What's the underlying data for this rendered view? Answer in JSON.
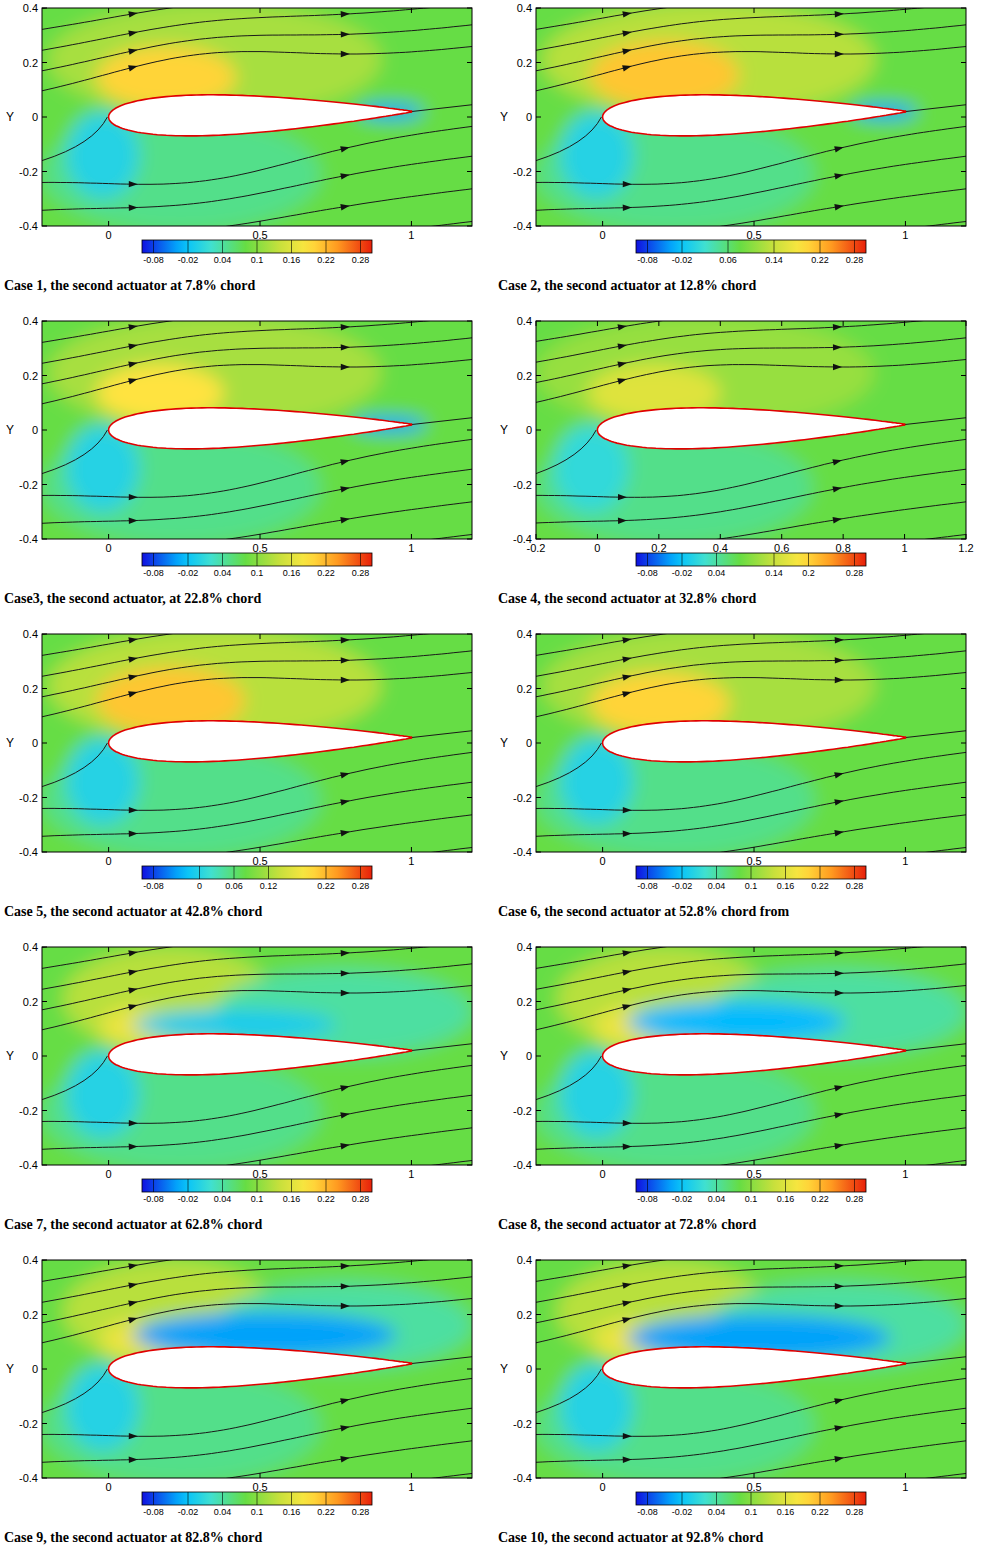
{
  "chart_data": [
    {
      "type": "contour",
      "title": "Case 1, the second actuator at 7.8% chord",
      "ylabel": "Y",
      "xlim": [
        -0.22,
        1.2
      ],
      "xticks": [
        0,
        0.5,
        1
      ],
      "ylim": [
        -0.4,
        0.4
      ],
      "yticks": [
        -0.4,
        -0.2,
        0,
        0.2,
        0.4
      ],
      "colorbar": {
        "range": [
          -0.1,
          0.3
        ],
        "ticks": [
          -0.08,
          -0.02,
          0.04,
          0.1,
          0.16,
          0.22,
          0.28
        ]
      },
      "field": [
        {
          "x": [
            -0.9,
            1.9
          ],
          "y": [
            -0.7,
            0.7
          ],
          "value": 0.08
        },
        {
          "x": [
            -0.2,
            0.9
          ],
          "y": [
            0.0,
            0.42
          ],
          "value": 0.12
        },
        {
          "x": [
            -0.22,
            0.7
          ],
          "y": [
            -0.42,
            0.0
          ],
          "value": 0.05
        },
        {
          "x": [
            -0.04,
            0.42
          ],
          "y": [
            0.03,
            0.26
          ],
          "value": 0.2
        },
        {
          "x": [
            -0.14,
            0.1
          ],
          "y": [
            -0.3,
            0.02
          ],
          "value": 0.0
        },
        {
          "x": [
            0.82,
            1.04
          ],
          "y": [
            -0.01,
            0.05
          ],
          "value": -0.04
        }
      ]
    },
    {
      "type": "contour",
      "title": "Case 2, the second actuator at 12.8% chord",
      "ylabel": "Y",
      "xlim": [
        -0.22,
        1.2
      ],
      "xticks": [
        0,
        0.5,
        1
      ],
      "ylim": [
        -0.4,
        0.4
      ],
      "yticks": [
        -0.4,
        -0.2,
        0,
        0.2,
        0.4
      ],
      "colorbar": {
        "range": [
          -0.1,
          0.3
        ],
        "ticks": [
          -0.08,
          -0.02,
          0.06,
          0.14,
          0.22,
          0.28
        ]
      },
      "field": [
        {
          "x": [
            -0.9,
            1.9
          ],
          "y": [
            -0.7,
            0.7
          ],
          "value": 0.08
        },
        {
          "x": [
            -0.2,
            0.9
          ],
          "y": [
            0.0,
            0.42
          ],
          "value": 0.13
        },
        {
          "x": [
            -0.22,
            0.7
          ],
          "y": [
            -0.42,
            0.0
          ],
          "value": 0.05
        },
        {
          "x": [
            -0.04,
            0.45
          ],
          "y": [
            0.03,
            0.28
          ],
          "value": 0.21
        },
        {
          "x": [
            -0.14,
            0.1
          ],
          "y": [
            -0.3,
            0.02
          ],
          "value": 0.0
        },
        {
          "x": [
            0.82,
            1.04
          ],
          "y": [
            -0.01,
            0.05
          ],
          "value": -0.04
        }
      ]
    },
    {
      "type": "contour",
      "title": "Case3, the second actuator, at 22.8% chord",
      "ylabel": "Y",
      "xlim": [
        -0.22,
        1.2
      ],
      "xticks": [
        0,
        0.5,
        1
      ],
      "ylim": [
        -0.4,
        0.4
      ],
      "yticks": [
        -0.4,
        -0.2,
        0,
        0.2,
        0.4
      ],
      "colorbar": {
        "range": [
          -0.1,
          0.3
        ],
        "ticks": [
          -0.08,
          -0.02,
          0.04,
          0.1,
          0.16,
          0.22,
          0.28
        ]
      },
      "field": [
        {
          "x": [
            -0.9,
            1.9
          ],
          "y": [
            -0.7,
            0.7
          ],
          "value": 0.08
        },
        {
          "x": [
            -0.2,
            0.9
          ],
          "y": [
            0.0,
            0.42
          ],
          "value": 0.12
        },
        {
          "x": [
            -0.22,
            0.7
          ],
          "y": [
            -0.42,
            0.0
          ],
          "value": 0.05
        },
        {
          "x": [
            -0.04,
            0.38
          ],
          "y": [
            0.03,
            0.24
          ],
          "value": 0.19
        },
        {
          "x": [
            -0.14,
            0.1
          ],
          "y": [
            -0.3,
            0.02
          ],
          "value": 0.0
        },
        {
          "x": [
            0.8,
            1.05
          ],
          "y": [
            -0.01,
            0.05
          ],
          "value": -0.04
        }
      ]
    },
    {
      "type": "contour",
      "title": "Case 4, the second actuator at 32.8% chord",
      "ylabel": "Y",
      "xlim": [
        -0.2,
        1.2
      ],
      "xticks": [
        -0.2,
        0,
        0.2,
        0.4,
        0.6,
        0.8,
        1,
        1.2
      ],
      "ylim": [
        -0.4,
        0.4
      ],
      "yticks": [
        -0.4,
        -0.2,
        0,
        0.2,
        0.4
      ],
      "colorbar": {
        "range": [
          -0.1,
          0.3
        ],
        "ticks": [
          -0.08,
          -0.02,
          0.04,
          0.14,
          0.2,
          0.28
        ]
      },
      "field": [
        {
          "x": [
            -0.9,
            1.9
          ],
          "y": [
            -0.7,
            0.7
          ],
          "value": 0.08
        },
        {
          "x": [
            -0.2,
            0.9
          ],
          "y": [
            0.0,
            0.42
          ],
          "value": 0.11
        },
        {
          "x": [
            -0.2,
            0.7
          ],
          "y": [
            -0.42,
            0.0
          ],
          "value": 0.05
        },
        {
          "x": [
            -0.03,
            0.4
          ],
          "y": [
            0.03,
            0.24
          ],
          "value": 0.16
        },
        {
          "x": [
            -0.14,
            0.1
          ],
          "y": [
            -0.3,
            0.02
          ],
          "value": 0.01
        }
      ]
    },
    {
      "type": "contour",
      "title": "Case 5, the second actuator at 42.8% chord",
      "ylabel": "Y",
      "xlim": [
        -0.22,
        1.2
      ],
      "xticks": [
        0,
        0.5,
        1
      ],
      "ylim": [
        -0.4,
        0.4
      ],
      "yticks": [
        -0.4,
        -0.2,
        0,
        0.2,
        0.4
      ],
      "colorbar": {
        "range": [
          -0.1,
          0.3
        ],
        "ticks": [
          -0.08,
          0,
          0.06,
          0.12,
          0.22,
          0.28
        ]
      },
      "field": [
        {
          "x": [
            -0.9,
            1.9
          ],
          "y": [
            -0.7,
            0.7
          ],
          "value": 0.08
        },
        {
          "x": [
            -0.2,
            0.9
          ],
          "y": [
            0.0,
            0.42
          ],
          "value": 0.13
        },
        {
          "x": [
            -0.22,
            0.7
          ],
          "y": [
            -0.42,
            0.0
          ],
          "value": 0.05
        },
        {
          "x": [
            -0.04,
            0.45
          ],
          "y": [
            0.03,
            0.28
          ],
          "value": 0.21
        },
        {
          "x": [
            -0.14,
            0.1
          ],
          "y": [
            -0.3,
            0.02
          ],
          "value": 0.0
        }
      ]
    },
    {
      "type": "contour",
      "title": "Case 6, the second actuator at 52.8% chord from",
      "ylabel": "Y",
      "xlim": [
        -0.22,
        1.2
      ],
      "xticks": [
        0,
        0.5,
        1
      ],
      "ylim": [
        -0.4,
        0.4
      ],
      "yticks": [
        -0.4,
        -0.2,
        0,
        0.2,
        0.4
      ],
      "colorbar": {
        "range": [
          -0.1,
          0.3
        ],
        "ticks": [
          -0.08,
          -0.02,
          0.04,
          0.1,
          0.16,
          0.22,
          0.28
        ]
      },
      "field": [
        {
          "x": [
            -0.9,
            1.9
          ],
          "y": [
            -0.7,
            0.7
          ],
          "value": 0.08
        },
        {
          "x": [
            -0.2,
            0.9
          ],
          "y": [
            0.0,
            0.42
          ],
          "value": 0.12
        },
        {
          "x": [
            -0.22,
            0.7
          ],
          "y": [
            -0.42,
            0.0
          ],
          "value": 0.05
        },
        {
          "x": [
            -0.04,
            0.42
          ],
          "y": [
            0.03,
            0.26
          ],
          "value": 0.2
        },
        {
          "x": [
            -0.14,
            0.1
          ],
          "y": [
            -0.3,
            0.02
          ],
          "value": 0.0
        }
      ]
    },
    {
      "type": "contour",
      "title": "Case 7, the second actuator at 62.8% chord",
      "ylabel": "Y",
      "xlim": [
        -0.22,
        1.2
      ],
      "xticks": [
        0,
        0.5,
        1
      ],
      "ylim": [
        -0.4,
        0.4
      ],
      "yticks": [
        -0.4,
        -0.2,
        0,
        0.2,
        0.4
      ],
      "colorbar": {
        "range": [
          -0.1,
          0.3
        ],
        "ticks": [
          -0.08,
          -0.02,
          0.04,
          0.1,
          0.16,
          0.22,
          0.28
        ]
      },
      "field": [
        {
          "x": [
            -0.9,
            1.9
          ],
          "y": [
            -0.7,
            0.7
          ],
          "value": 0.08
        },
        {
          "x": [
            -0.15,
            0.55
          ],
          "y": [
            0.02,
            0.4
          ],
          "value": 0.13
        },
        {
          "x": [
            -0.22,
            0.7
          ],
          "y": [
            -0.42,
            0.0
          ],
          "value": 0.05
        },
        {
          "x": [
            -0.03,
            0.2
          ],
          "y": [
            0.03,
            0.18
          ],
          "value": 0.17
        },
        {
          "x": [
            -0.14,
            0.1
          ],
          "y": [
            -0.3,
            0.02
          ],
          "value": 0.0
        },
        {
          "x": [
            0.35,
            1.2
          ],
          "y": [
            0.0,
            0.32
          ],
          "value": 0.04
        },
        {
          "x": [
            0.08,
            0.75
          ],
          "y": [
            0.06,
            0.17
          ],
          "value": -0.01
        }
      ]
    },
    {
      "type": "contour",
      "title": "Case 8, the second actuator at 72.8% chord",
      "ylabel": "Y",
      "xlim": [
        -0.22,
        1.2
      ],
      "xticks": [
        0,
        0.5,
        1
      ],
      "ylim": [
        -0.4,
        0.4
      ],
      "yticks": [
        -0.4,
        -0.2,
        0,
        0.2,
        0.4
      ],
      "colorbar": {
        "range": [
          -0.1,
          0.3
        ],
        "ticks": [
          -0.08,
          -0.02,
          0.04,
          0.1,
          0.16,
          0.22,
          0.28
        ]
      },
      "field": [
        {
          "x": [
            -0.9,
            1.9
          ],
          "y": [
            -0.7,
            0.7
          ],
          "value": 0.08
        },
        {
          "x": [
            -0.15,
            0.55
          ],
          "y": [
            0.02,
            0.4
          ],
          "value": 0.13
        },
        {
          "x": [
            -0.22,
            0.7
          ],
          "y": [
            -0.42,
            0.0
          ],
          "value": 0.05
        },
        {
          "x": [
            -0.03,
            0.2
          ],
          "y": [
            0.03,
            0.18
          ],
          "value": 0.17
        },
        {
          "x": [
            -0.14,
            0.1
          ],
          "y": [
            -0.3,
            0.02
          ],
          "value": 0.0
        },
        {
          "x": [
            0.35,
            1.2
          ],
          "y": [
            0.0,
            0.32
          ],
          "value": 0.04
        },
        {
          "x": [
            0.08,
            0.8
          ],
          "y": [
            0.05,
            0.2
          ],
          "value": -0.03
        }
      ]
    },
    {
      "type": "contour",
      "title": "Case 9, the second actuator at 82.8% chord",
      "ylabel": "Y",
      "xlim": [
        -0.22,
        1.2
      ],
      "xticks": [
        0,
        0.5,
        1
      ],
      "ylim": [
        -0.4,
        0.4
      ],
      "yticks": [
        -0.4,
        -0.2,
        0,
        0.2,
        0.4
      ],
      "colorbar": {
        "range": [
          -0.1,
          0.3
        ],
        "ticks": [
          -0.08,
          -0.02,
          0.04,
          0.1,
          0.16,
          0.22,
          0.28
        ]
      },
      "field": [
        {
          "x": [
            -0.9,
            1.9
          ],
          "y": [
            -0.7,
            0.7
          ],
          "value": 0.08
        },
        {
          "x": [
            -0.15,
            0.55
          ],
          "y": [
            0.02,
            0.4
          ],
          "value": 0.13
        },
        {
          "x": [
            -0.22,
            0.7
          ],
          "y": [
            -0.42,
            0.0
          ],
          "value": 0.05
        },
        {
          "x": [
            -0.03,
            0.2
          ],
          "y": [
            0.03,
            0.18
          ],
          "value": 0.17
        },
        {
          "x": [
            -0.14,
            0.1
          ],
          "y": [
            -0.3,
            0.02
          ],
          "value": 0.0
        },
        {
          "x": [
            0.35,
            1.2
          ],
          "y": [
            0.0,
            0.32
          ],
          "value": 0.04
        },
        {
          "x": [
            0.08,
            0.95
          ],
          "y": [
            0.04,
            0.21
          ],
          "value": -0.04
        }
      ]
    },
    {
      "type": "contour",
      "title": "Case 10, the second actuator at 92.8% chord",
      "ylabel": "Y",
      "xlim": [
        -0.22,
        1.2
      ],
      "xticks": [
        0,
        0.5,
        1
      ],
      "ylim": [
        -0.4,
        0.4
      ],
      "yticks": [
        -0.4,
        -0.2,
        0,
        0.2,
        0.4
      ],
      "colorbar": {
        "range": [
          -0.1,
          0.3
        ],
        "ticks": [
          -0.08,
          -0.02,
          0.04,
          0.1,
          0.16,
          0.22,
          0.28
        ]
      },
      "field": [
        {
          "x": [
            -0.9,
            1.9
          ],
          "y": [
            -0.7,
            0.7
          ],
          "value": 0.08
        },
        {
          "x": [
            -0.15,
            0.55
          ],
          "y": [
            0.02,
            0.4
          ],
          "value": 0.13
        },
        {
          "x": [
            -0.22,
            0.7
          ],
          "y": [
            -0.42,
            0.0
          ],
          "value": 0.05
        },
        {
          "x": [
            -0.03,
            0.2
          ],
          "y": [
            0.03,
            0.18
          ],
          "value": 0.17
        },
        {
          "x": [
            -0.14,
            0.1
          ],
          "y": [
            -0.3,
            0.02
          ],
          "value": 0.0
        },
        {
          "x": [
            0.35,
            1.2
          ],
          "y": [
            0.0,
            0.32
          ],
          "value": 0.04
        },
        {
          "x": [
            0.08,
            0.95
          ],
          "y": [
            0.03,
            0.2
          ],
          "value": -0.04
        }
      ]
    }
  ]
}
